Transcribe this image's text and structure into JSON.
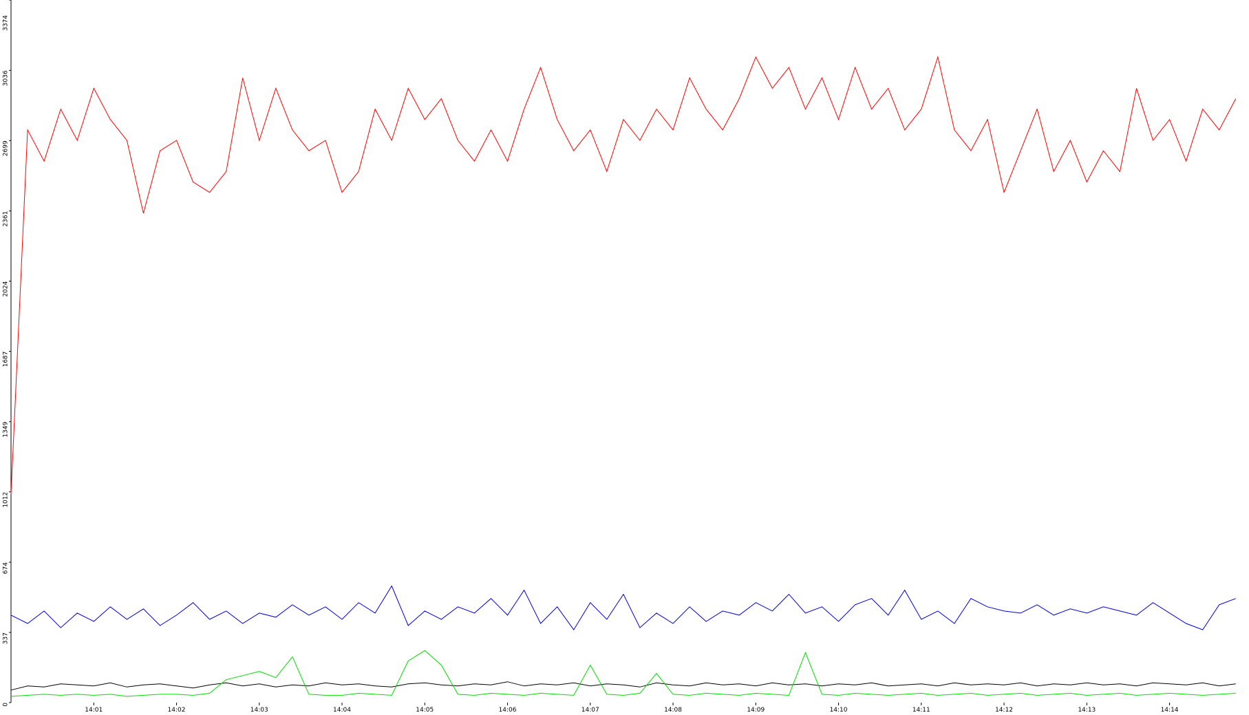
{
  "chart_data": {
    "type": "line",
    "x": [
      0,
      0.2,
      0.4,
      0.6,
      0.8,
      1,
      1.2,
      1.4,
      1.6,
      1.8,
      2,
      2.2,
      2.4,
      2.6,
      2.8,
      3,
      3.2,
      3.4,
      3.6,
      3.8,
      4,
      4.2,
      4.4,
      4.6,
      4.8,
      5,
      5.2,
      5.4,
      5.6,
      5.8,
      6,
      6.2,
      6.4,
      6.6,
      6.8,
      7,
      7.2,
      7.4,
      7.6,
      7.8,
      8,
      8.2,
      8.4,
      8.6,
      8.8,
      9,
      9.2,
      9.4,
      9.6,
      9.8,
      10,
      10.2,
      10.4,
      10.6,
      10.8,
      11,
      11.2,
      11.4,
      11.6,
      11.8,
      12,
      12.2,
      12.4,
      12.6,
      12.8,
      13,
      13.2,
      13.4,
      13.6,
      13.8,
      14,
      14.2,
      14.4,
      14.6,
      14.8
    ],
    "xlim": [
      0,
      14.96
    ],
    "xticks": [
      {
        "value": 1,
        "label": "14:01"
      },
      {
        "value": 2,
        "label": "14:02"
      },
      {
        "value": 3,
        "label": "14:03"
      },
      {
        "value": 4,
        "label": "14:04"
      },
      {
        "value": 5,
        "label": "14:05"
      },
      {
        "value": 6,
        "label": "14:06"
      },
      {
        "value": 7,
        "label": "14:07"
      },
      {
        "value": 8,
        "label": "14:08"
      },
      {
        "value": 9,
        "label": "14:09"
      },
      {
        "value": 10,
        "label": "14:10"
      },
      {
        "value": 11,
        "label": "14:11"
      },
      {
        "value": 12,
        "label": "14:12"
      },
      {
        "value": 13,
        "label": "14:13"
      },
      {
        "value": 14,
        "label": "14:14"
      }
    ],
    "ylim": [
      0,
      3374
    ],
    "yticks": [
      0,
      337,
      674,
      1012,
      1349,
      1687,
      2024,
      2361,
      2699,
      3036,
      3374
    ],
    "grid": false,
    "series": [
      {
        "color": "#ff0000",
        "values": [
          1000,
          2750,
          2600,
          2850,
          2700,
          2950,
          2800,
          2700,
          2350,
          2650,
          2700,
          2500,
          2450,
          2550,
          3000,
          2700,
          2950,
          2750,
          2650,
          2700,
          2450,
          2550,
          2850,
          2700,
          2950,
          2800,
          2900,
          2700,
          2600,
          2750,
          2600,
          2850,
          3050,
          2800,
          2650,
          2750,
          2550,
          2800,
          2700,
          2850,
          2750,
          3000,
          2850,
          2750,
          2900,
          3100,
          2950,
          3050,
          2850,
          3000,
          2800,
          3050,
          2850,
          2950,
          2750,
          2850,
          3100,
          2750,
          2650,
          2800,
          2450,
          2650,
          2850,
          2550,
          2700,
          2500,
          2650,
          2550,
          2950,
          2700,
          2800,
          2600,
          2850,
          2750,
          2900
        ]
      },
      {
        "color": "#0000dd",
        "values": [
          420,
          380,
          440,
          360,
          430,
          390,
          460,
          400,
          450,
          370,
          420,
          480,
          400,
          440,
          380,
          430,
          410,
          470,
          420,
          460,
          400,
          480,
          430,
          560,
          370,
          440,
          400,
          460,
          430,
          500,
          420,
          540,
          380,
          460,
          350,
          480,
          400,
          520,
          360,
          430,
          380,
          460,
          390,
          440,
          420,
          480,
          440,
          520,
          430,
          460,
          390,
          470,
          500,
          420,
          540,
          400,
          440,
          380,
          500,
          460,
          440,
          430,
          470,
          420,
          450,
          430,
          460,
          440,
          420,
          480,
          430,
          380,
          350,
          470,
          500
        ]
      },
      {
        "color": "#000000",
        "values": [
          60,
          80,
          75,
          90,
          85,
          80,
          95,
          75,
          85,
          90,
          80,
          70,
          85,
          95,
          80,
          90,
          75,
          85,
          80,
          95,
          85,
          90,
          80,
          75,
          90,
          95,
          85,
          80,
          90,
          85,
          100,
          80,
          90,
          85,
          95,
          80,
          90,
          85,
          75,
          95,
          85,
          80,
          95,
          85,
          90,
          80,
          95,
          85,
          90,
          80,
          90,
          85,
          95,
          80,
          85,
          90,
          80,
          95,
          85,
          90,
          85,
          95,
          80,
          90,
          85,
          95,
          85,
          90,
          80,
          95,
          90,
          85,
          95,
          80,
          90
        ]
      },
      {
        "color": "#00dd00",
        "values": [
          30,
          35,
          40,
          35,
          40,
          35,
          40,
          30,
          35,
          40,
          40,
          35,
          45,
          110,
          130,
          150,
          120,
          220,
          40,
          35,
          35,
          45,
          40,
          35,
          200,
          250,
          180,
          40,
          35,
          45,
          40,
          35,
          45,
          40,
          35,
          180,
          40,
          35,
          45,
          140,
          40,
          35,
          45,
          40,
          35,
          45,
          40,
          35,
          240,
          40,
          35,
          45,
          40,
          35,
          40,
          45,
          35,
          40,
          45,
          35,
          40,
          45,
          35,
          40,
          45,
          35,
          40,
          45,
          35,
          40,
          45,
          40,
          35,
          40,
          45
        ]
      }
    ]
  }
}
